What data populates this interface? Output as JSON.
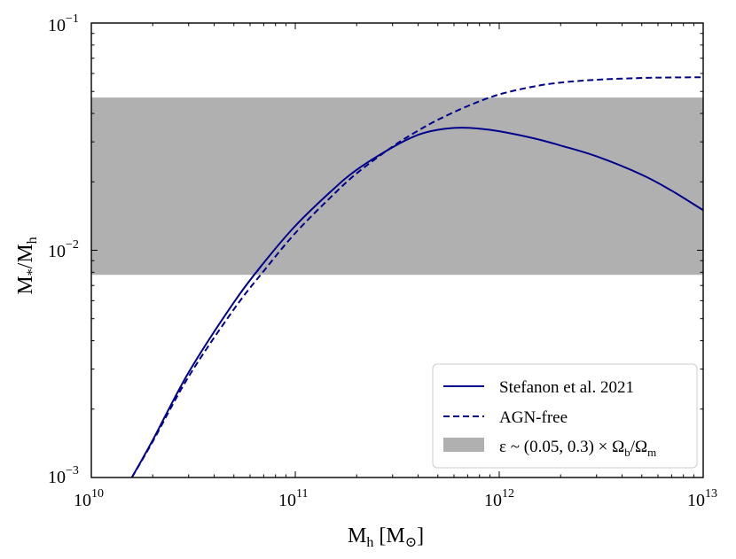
{
  "chart_data": {
    "type": "line",
    "xscale": "log",
    "yscale": "log",
    "xlim": [
      10000000000.0,
      10000000000000.0
    ],
    "ylim": [
      0.001,
      0.1
    ],
    "xlabel": {
      "main": "M",
      "sub": "h",
      "unit_open": "[M",
      "unit_sub": "⊙",
      "unit_close": "]"
    },
    "ylabel": {
      "num": "M",
      "num_sub": "*",
      "slash": "/M",
      "den_sub": "h"
    },
    "x_ticks": [
      {
        "value": 10000000000.0,
        "base": "10",
        "exp": "10"
      },
      {
        "value": 100000000000.0,
        "base": "10",
        "exp": "11"
      },
      {
        "value": 1000000000000.0,
        "base": "10",
        "exp": "12"
      },
      {
        "value": 10000000000000.0,
        "base": "10",
        "exp": "13"
      }
    ],
    "y_ticks": [
      {
        "value": 0.001,
        "base": "10",
        "exp": "−3"
      },
      {
        "value": 0.01,
        "base": "10",
        "exp": "−2"
      },
      {
        "value": 0.1,
        "base": "10",
        "exp": "−1"
      }
    ],
    "band": {
      "name": "ε ~ (0.05, 0.3) × Ω_b/Ω_m",
      "ymin": 0.0078,
      "ymax": 0.047,
      "color": "#b0b0b0"
    },
    "series": [
      {
        "name": "Stefanon et al. 2021",
        "style": "solid",
        "color": "#00008b",
        "x": [
          15800000000.0,
          20000000000.0,
          30000000000.0,
          50000000000.0,
          70000000000.0,
          100000000000.0,
          150000000000.0,
          200000000000.0,
          300000000000.0,
          400000000000.0,
          500000000000.0,
          630000000000.0,
          800000000000.0,
          1000000000000.0,
          1500000000000.0,
          2000000000000.0,
          3000000000000.0,
          5000000000000.0,
          7000000000000.0,
          10000000000000.0
        ],
        "y": [
          0.001,
          0.00146,
          0.0029,
          0.0059,
          0.0088,
          0.0128,
          0.0182,
          0.0226,
          0.0284,
          0.0322,
          0.0339,
          0.0346,
          0.0343,
          0.0334,
          0.031,
          0.0289,
          0.0259,
          0.0215,
          0.0183,
          0.015
        ]
      },
      {
        "name": "AGN-free",
        "style": "dashed",
        "color": "#00008b",
        "x": [
          15800000000.0,
          20000000000.0,
          30000000000.0,
          50000000000.0,
          70000000000.0,
          100000000000.0,
          150000000000.0,
          200000000000.0,
          300000000000.0,
          400000000000.0,
          500000000000.0,
          700000000000.0,
          1000000000000.0,
          1500000000000.0,
          2000000000000.0,
          3000000000000.0,
          5000000000000.0,
          7000000000000.0,
          10000000000000.0
        ],
        "y": [
          0.001,
          0.00144,
          0.00278,
          0.0055,
          0.0081,
          0.0119,
          0.0172,
          0.0218,
          0.0286,
          0.0336,
          0.0375,
          0.0431,
          0.0485,
          0.0527,
          0.0547,
          0.0563,
          0.0573,
          0.0576,
          0.0577
        ]
      }
    ],
    "legend": {
      "location": "lower-right",
      "entries": [
        {
          "label": "Stefanon et al. 2021",
          "kind": "solid"
        },
        {
          "label": "AGN-free",
          "kind": "dashed"
        },
        {
          "label_parts": {
            "a": "ε ~ (0.05, 0.3) × Ω",
            "b_sub": "b",
            "c": "/Ω",
            "d_sub": "m"
          },
          "kind": "patch"
        }
      ]
    }
  }
}
